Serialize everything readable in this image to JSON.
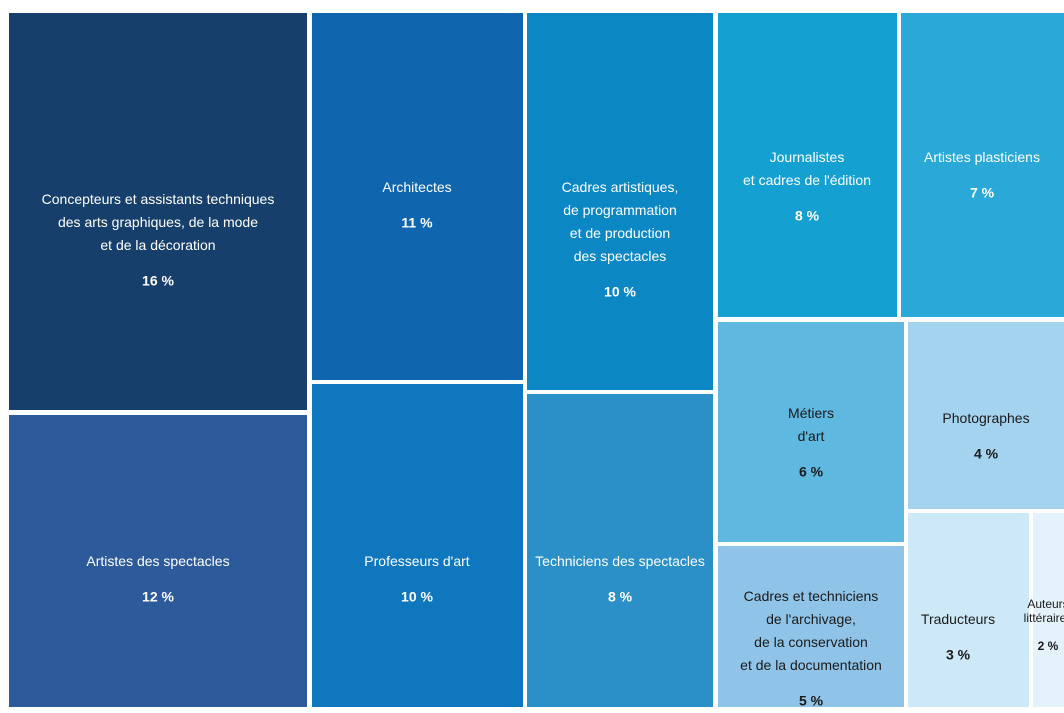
{
  "chart_data": {
    "type": "treemap",
    "categories": [
      "Concepteurs et assistants techniques\ndes arts graphiques, de la mode\net de la décoration",
      "Artistes des spectacles",
      "Architectes",
      "Professeurs d'art",
      "Cadres artistiques,\nde programmation\net de production\ndes spectacles",
      "Techniciens des spectacles",
      "Journalistes\net cadres de l'édition",
      "Artistes plasticiens",
      "Métiers\nd'art",
      "Photographes",
      "Cadres et techniciens\nde l'archivage,\nde la conservation\net de la documentation",
      "Traducteurs",
      "Auteurs\nlittéraires"
    ],
    "values": [
      16,
      12,
      11,
      10,
      10,
      8,
      8,
      7,
      6,
      4,
      5,
      3,
      2
    ],
    "value_labels": [
      "16 %",
      "12 %",
      "11 %",
      "10 %",
      "10 %",
      "8 %",
      "8 %",
      "7 %",
      "6 %",
      "4 %",
      "5 %",
      "3 %",
      "2 %"
    ],
    "colors": [
      "#173f6b",
      "#2d5a9b",
      "#1066ae",
      "#0f77bd",
      "#0b88c3",
      "#2a90c7",
      "#15a0d2",
      "#2aa9d8",
      "#5fb8df",
      "#a4d3f0",
      "#8fc4e8",
      "#cde9f8",
      "#e3f2fb"
    ]
  }
}
